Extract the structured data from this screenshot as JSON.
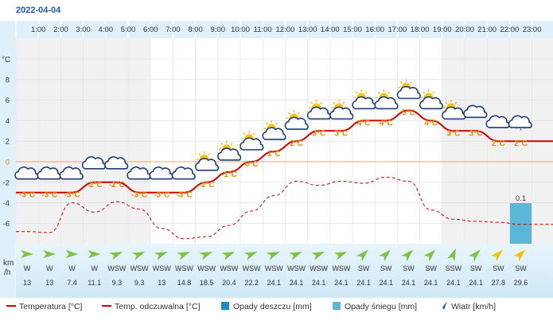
{
  "page": {
    "date": "2022-04-04"
  },
  "hours": [
    "1:00",
    "2:00",
    "3:00",
    "4:00",
    "5:00",
    "6:00",
    "7:00",
    "8:00",
    "9:00",
    "10:00",
    "11:00",
    "12:00",
    "13:00",
    "14:00",
    "15:00",
    "16:00",
    "17:00",
    "18:00",
    "19:00",
    "20:00",
    "21:00",
    "22:00",
    "23:00"
  ],
  "axes": {
    "temp_unit": "°C",
    "wind_unit_line1": "km",
    "wind_unit_line2": "/h"
  },
  "chart_data": {
    "type": "line",
    "x": [
      1,
      2,
      3,
      4,
      5,
      6,
      7,
      8,
      9,
      10,
      11,
      12,
      13,
      14,
      15,
      16,
      17,
      18,
      19,
      20,
      21,
      22,
      23
    ],
    "ylim": [
      -8,
      10
    ],
    "yticks": [
      -6,
      -4,
      -2,
      0,
      2,
      4,
      6,
      8
    ],
    "series": [
      {
        "name": "Temperatura [°C]",
        "color": "#cc0000",
        "values": [
          -3,
          -3,
          -3,
          -2,
          -2,
          -3,
          -3,
          -3,
          -2,
          -1,
          0,
          1,
          2,
          3,
          3,
          4,
          4,
          5,
          4,
          3,
          3,
          2,
          2
        ]
      },
      {
        "name": "Temp. odczuwalna [°C]",
        "color": "#cc0000",
        "dashed": true,
        "values": [
          -6.8,
          -6.9,
          -4,
          -4.9,
          -3.9,
          -4.6,
          -6.5,
          -7.5,
          -7.3,
          -6.2,
          -4.8,
          -3.3,
          -1.9,
          -2.3,
          -1.9,
          -2.1,
          -1.5,
          -1.9,
          -4.7,
          -5.6,
          -5.8,
          -5.9,
          -6.1
        ]
      }
    ],
    "temp_labels": [
      "-3°C",
      "-3°C",
      "-3°C",
      "-2°C",
      "-2°C",
      "-3°C",
      "-3°C",
      "-3°C",
      "-2°C",
      "-1°C",
      "0°C",
      "1°C",
      "2°C",
      "3°C",
      "3°C",
      "4°C",
      "4°C",
      "5°C",
      "4°C",
      "3°C",
      "3°C",
      "2°C",
      "2°C"
    ],
    "weather_icons": [
      "cloud-icon",
      "cloud-icon",
      "cloud-icon",
      "cloud-icon",
      "cloud-icon",
      "cloud-icon",
      "cloud-icon",
      "cloud-icon",
      "sun-cloud-icon",
      "sun-cloud-icon",
      "sun-cloud-icon",
      "sun-cloud-icon",
      "sun-cloud-icon",
      "sun-cloud-icon",
      "sun-cloud-icon",
      "sun-cloud-icon",
      "sun-cloud-icon",
      "sun-cloud-icon",
      "sun-cloud-icon",
      "sun-cloud-icon",
      "cloud-icon",
      "cloud-icon",
      "snow-cloud-icon"
    ],
    "snow": {
      "hour": 23,
      "value": 0.1,
      "label": "0.1",
      "color": "#5ab7d7"
    },
    "wind_dir": [
      "W",
      "W",
      "W",
      "W",
      "WSW",
      "WSW",
      "WSW",
      "WSW",
      "WSW",
      "WSW",
      "WSW",
      "WSW",
      "WSW",
      "WSW",
      "WSW",
      "SW",
      "SW",
      "SW",
      "SW",
      "SSW",
      "SW",
      "SW",
      "SW"
    ],
    "wind_speed": [
      "13",
      "13",
      "7.4",
      "11.1",
      "9.3",
      "9.3",
      "13",
      "14.8",
      "18.5",
      "20.4",
      "22.2",
      "24.1",
      "24.1",
      "24.1",
      "24.1",
      "24.1",
      "24.1",
      "24.1",
      "24.1",
      "24.1",
      "24.1",
      "27.8",
      "29.6"
    ],
    "wind_color": [
      "#7fc241",
      "#7fc241",
      "#7fc241",
      "#7fc241",
      "#7fc241",
      "#7fc241",
      "#7fc241",
      "#7fc241",
      "#7fc241",
      "#7fc241",
      "#7fc241",
      "#7fc241",
      "#7fc241",
      "#7fc241",
      "#7fc241",
      "#7fc241",
      "#7fc241",
      "#7fc241",
      "#7fc241",
      "#7fc241",
      "#7fc241",
      "#f2c200",
      "#f2c200"
    ]
  },
  "legend": [
    {
      "label": "Temperatura [°C]",
      "symbol": "line",
      "color": "#cc0000"
    },
    {
      "label": "Temp. odczuwalna [°C]",
      "symbol": "line",
      "color": "#cc0000"
    },
    {
      "label": "Opady deszczu [mm]",
      "symbol": "box",
      "color": "#1a8cbf"
    },
    {
      "label": "Opady śniegu [mm]",
      "symbol": "box",
      "color": "#5ab7d7"
    },
    {
      "label": "Wiatr [km/h]",
      "symbol": "arrow",
      "color": "#2b5591"
    }
  ]
}
